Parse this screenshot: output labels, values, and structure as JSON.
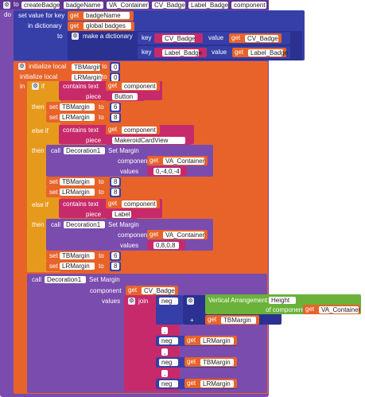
{
  "proc": {
    "to": "to",
    "name": "createBadge",
    "params": [
      "badgeName",
      "VA_Container",
      "CV_Badge",
      "Label_Badge",
      "component"
    ],
    "do": "do"
  },
  "set_key": {
    "label": "set value for key",
    "get": "get",
    "key_var": "badgeName",
    "in_dict": "in dictionary",
    "dict_var": "global badges",
    "to": "to"
  },
  "make_dict": {
    "label": "make a dictionary",
    "key": "key",
    "value": "value",
    "get": "get",
    "pairs": [
      {
        "key": "CV_Badge",
        "value": "CV_Badge"
      },
      {
        "key": "Label_Badge",
        "value": "Label_Badge"
      }
    ]
  },
  "locals": {
    "label": "initialize local",
    "vars": [
      {
        "name": "TBMargin",
        "to": "to",
        "value": "0"
      },
      {
        "name": "LRMargin",
        "to": "to",
        "value": "0"
      }
    ],
    "in": "in"
  },
  "if_block": {
    "if": "if",
    "then": "then",
    "else_if": "else if",
    "contains": "contains text",
    "piece": "piece",
    "get": "get",
    "set": "set",
    "to": "to",
    "call": "call",
    "decoration": "Decoration1",
    "set_margin": "Set Margin",
    "component": "component",
    "values": "values",
    "branches": [
      {
        "var": "component",
        "piece": "Button",
        "tb": "6",
        "lr": "8"
      },
      {
        "var": "component",
        "piece": "MakeroidCardView",
        "call_component": "VA_Container",
        "call_values": "0,-4,0,-4",
        "tb": "8",
        "lr": "8"
      },
      {
        "var": "component",
        "piece": "Label",
        "call_component": "VA_Container",
        "call_values": "0,8,0,8",
        "tb": "6",
        "lr": "8"
      }
    ],
    "tb_var": "TBMargin",
    "lr_var": "LRMargin"
  },
  "final_call": {
    "call": "call",
    "decoration": "Decoration1",
    "set_margin": "Set Margin",
    "component": "component",
    "get": "get",
    "comp_var": "CV_Badge",
    "values": "values",
    "join": "join",
    "neg": "neg",
    "va_label": "Vertical Arrangement",
    "height": "Height",
    "of_component": "of component",
    "va_var": "VA_Container",
    "plus": "+",
    "tb_var": "TBMargin",
    "lr_var": "LRMargin",
    "comma": ","
  },
  "icons": {
    "gear": "gear-icon",
    "dropdown": "chevron-down-icon"
  },
  "colors": {
    "procedure": "#7a4cae",
    "control": "#e69a1c",
    "text": "#c72a6a",
    "variable": "#e8632a",
    "dictionary": "#363fa8",
    "component": "#6ab23a"
  }
}
